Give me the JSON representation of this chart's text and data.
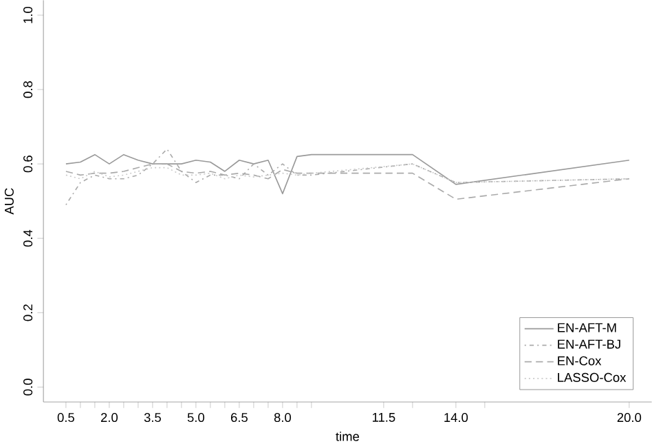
{
  "chart_data": {
    "type": "line",
    "xlabel": "time",
    "ylabel": "AUC",
    "x": [
      0.5,
      1.0,
      1.5,
      2.0,
      2.5,
      3.0,
      3.5,
      4.0,
      4.5,
      5.0,
      5.5,
      6.0,
      6.5,
      7.0,
      7.5,
      8.0,
      8.5,
      9.0,
      12.5,
      14.0,
      20.0
    ],
    "series": [
      {
        "name": "EN-AFT-M",
        "color": "#999999",
        "line_style": "solid",
        "values": [
          0.6,
          0.605,
          0.625,
          0.6,
          0.625,
          0.61,
          0.6,
          0.6,
          0.6,
          0.61,
          0.605,
          0.58,
          0.61,
          0.6,
          0.61,
          0.52,
          0.62,
          0.625,
          0.625,
          0.545,
          0.61
        ]
      },
      {
        "name": "EN-AFT-BJ",
        "color": "#aaaaaa",
        "line_style": "dashdot",
        "values": [
          0.49,
          0.55,
          0.57,
          0.56,
          0.56,
          0.57,
          0.6,
          0.64,
          0.58,
          0.55,
          0.57,
          0.57,
          0.56,
          0.6,
          0.57,
          0.6,
          0.57,
          0.57,
          0.6,
          0.55,
          0.56
        ]
      },
      {
        "name": "EN-Cox",
        "color": "#aaaaaa",
        "line_style": "dashed",
        "values": [
          0.58,
          0.57,
          0.575,
          0.575,
          0.58,
          0.59,
          0.6,
          0.6,
          0.58,
          0.575,
          0.58,
          0.57,
          0.575,
          0.57,
          0.56,
          0.585,
          0.575,
          0.575,
          0.575,
          0.505,
          0.56
        ]
      },
      {
        "name": "LASSO-Cox",
        "color": "#cccccc",
        "line_style": "dotted",
        "values": [
          0.57,
          0.56,
          0.58,
          0.565,
          0.57,
          0.58,
          0.59,
          0.59,
          0.57,
          0.57,
          0.575,
          0.56,
          0.57,
          0.565,
          0.57,
          0.575,
          0.57,
          0.575,
          0.6,
          0.55,
          0.56
        ]
      }
    ],
    "xlim": [
      -0.28,
      20.78
    ],
    "ylim": [
      -0.04,
      1.04
    ],
    "xticks": [
      {
        "value": 0.5,
        "label": "0.5"
      },
      {
        "value": 1.0,
        "label": null
      },
      {
        "value": 1.5,
        "label": null
      },
      {
        "value": 2.0,
        "label": "2.0"
      },
      {
        "value": 2.5,
        "label": null
      },
      {
        "value": 3.0,
        "label": null
      },
      {
        "value": 3.5,
        "label": "3.5"
      },
      {
        "value": 4.0,
        "label": null
      },
      {
        "value": 4.5,
        "label": null
      },
      {
        "value": 5.0,
        "label": "5.0"
      },
      {
        "value": 5.5,
        "label": null
      },
      {
        "value": 6.0,
        "label": null
      },
      {
        "value": 6.5,
        "label": "6.5"
      },
      {
        "value": 7.0,
        "label": null
      },
      {
        "value": 7.5,
        "label": null
      },
      {
        "value": 8.0,
        "label": "8.0"
      },
      {
        "value": 8.5,
        "label": null
      },
      {
        "value": 9.0,
        "label": null
      },
      {
        "value": 11.5,
        "label": "11.5"
      },
      {
        "value": 12.5,
        "label": null
      },
      {
        "value": 14.0,
        "label": "14.0"
      },
      {
        "value": 15.0,
        "label": null
      },
      {
        "value": 20.0,
        "label": "20.0"
      }
    ],
    "yticks": [
      {
        "value": 0,
        "label": "0.0"
      },
      {
        "value": 0.2,
        "label": "0.2"
      },
      {
        "value": 0.4,
        "label": "0.4"
      },
      {
        "value": 0.6,
        "label": "0.6"
      },
      {
        "value": 0.8,
        "label": "0.8"
      },
      {
        "value": 1.0,
        "label": "1.0"
      }
    ],
    "legend": "bottom right",
    "marker": "none",
    "grid": false
  }
}
